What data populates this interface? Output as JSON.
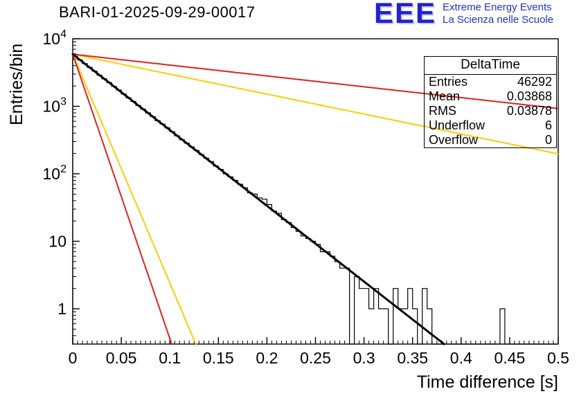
{
  "header": {
    "title": "BARI-01-2025-09-29-00017",
    "logo": {
      "acronym": "EEE",
      "line1": "Extreme Energy Events",
      "line2": "La Scienza nelle Scuole",
      "color": "#2222cc"
    }
  },
  "stats": {
    "title": "DeltaTime",
    "rows": [
      {
        "label": "Entries",
        "value": "46292"
      },
      {
        "label": "Mean",
        "value": "0.03868"
      },
      {
        "label": "RMS",
        "value": "0.03878"
      },
      {
        "label": "Underflow",
        "value": "6"
      },
      {
        "label": "Overflow",
        "value": "0"
      }
    ]
  },
  "chart_data": {
    "type": "bar",
    "subtype": "histogram-log-y",
    "title": "BARI-01-2025-09-29-00017",
    "xlabel": "Time difference [s]",
    "ylabel": "Entries/bin",
    "xlim": [
      0,
      0.5
    ],
    "ylim_log": [
      0.3,
      10000
    ],
    "grid": false,
    "x_major_ticks": [
      0,
      0.05,
      0.1,
      0.15,
      0.2,
      0.25,
      0.3,
      0.35,
      0.4,
      0.45,
      0.5
    ],
    "x_tick_labels": [
      "0",
      "0.05",
      "0.1",
      "0.15",
      "0.2",
      "0.25",
      "0.3",
      "0.35",
      "0.4",
      "0.45",
      "0.5"
    ],
    "y_decade_exponents": [
      0,
      1,
      2,
      3,
      4
    ],
    "bin_width": 0.005,
    "histogram_color": "#000000",
    "bins": [
      5530,
      4870,
      4280,
      3760,
      3310,
      2890,
      2550,
      2250,
      1970,
      1740,
      1520,
      1330,
      1180,
      1030,
      905,
      800,
      705,
      610,
      545,
      480,
      420,
      365,
      320,
      285,
      250,
      222,
      193,
      170,
      152,
      130,
      116,
      100,
      90,
      80,
      70,
      62,
      52,
      50,
      44,
      42,
      35,
      28,
      26,
      21,
      19,
      16,
      14,
      12,
      11,
      10,
      9,
      7,
      7,
      6,
      5,
      4,
      4,
      0,
      3,
      2,
      2,
      1,
      2,
      1,
      1,
      0,
      2,
      1,
      1,
      2,
      1,
      0,
      2,
      1,
      0,
      0,
      0,
      0,
      0,
      0,
      0,
      0,
      0,
      0,
      0,
      0,
      0,
      0,
      1,
      0,
      0,
      0,
      0,
      0,
      0,
      0,
      0,
      0,
      0,
      0
    ],
    "curves": [
      {
        "name": "reference-yellow-steep",
        "color": "#ffcc00",
        "width": 2,
        "amplitude": 5900,
        "decay_rate": 78
      },
      {
        "name": "reference-yellow-shallow",
        "color": "#ffcc00",
        "width": 2,
        "amplitude": 5900,
        "decay_rate": 6.8
      },
      {
        "name": "reference-red-steep",
        "color": "#dd2222",
        "width": 2,
        "amplitude": 5900,
        "decay_rate": 97
      },
      {
        "name": "reference-red-shallow",
        "color": "#dd2222",
        "width": 2,
        "amplitude": 5900,
        "decay_rate": 3.7
      },
      {
        "name": "exponential-fit",
        "color": "#000000",
        "width": 3,
        "amplitude": 5900,
        "decay_rate": 25.85
      }
    ]
  }
}
